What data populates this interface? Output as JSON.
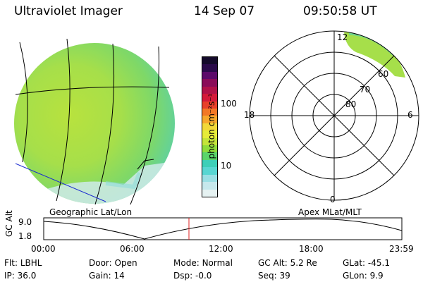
{
  "header": {
    "instrument": "Ultraviolet Imager",
    "date": "14 Sep 07",
    "time": "09:50:58 UT"
  },
  "colorbar": {
    "label": "photon cm⁻²s⁻¹",
    "ticks": [
      "100",
      "10"
    ],
    "colors": [
      "#e6f2f2",
      "#c6e8ec",
      "#9adfe4",
      "#58d6d2",
      "#3dcfb8",
      "#5ad46a",
      "#8fdc3c",
      "#c4e43a",
      "#e6ec3a",
      "#f2d838",
      "#f7a72c",
      "#f27826",
      "#e8402a",
      "#d41a3a",
      "#b01248",
      "#8a0c58",
      "#5c0a6a",
      "#2a0a4a",
      "#140a2a"
    ]
  },
  "left_panel": {
    "caption": "Geographic Lat/Lon"
  },
  "right_panel": {
    "caption": "Apex MLat/MLT",
    "mlt_labels": {
      "top": "12",
      "left": "18",
      "right": "6",
      "bottom": "0"
    },
    "mlat_labels": [
      "60",
      "70",
      "80"
    ]
  },
  "altitude_plot": {
    "ylabel": "GC Alt",
    "yticks": [
      "9.0",
      "1.8"
    ],
    "xticks": [
      "00:00",
      "06:00",
      "12:00",
      "18:00",
      "23:59"
    ]
  },
  "footer": {
    "row1": [
      {
        "key": "Flt:",
        "value": "LBHL"
      },
      {
        "key": "Door:",
        "value": "Open"
      },
      {
        "key": "Mode:",
        "value": "Normal"
      },
      {
        "key": "GC Alt:",
        "value": "5.2 Re"
      },
      {
        "key": "GLat:",
        "value": "-45.1"
      }
    ],
    "row2": [
      {
        "key": "IP:",
        "value": "36.0"
      },
      {
        "key": "Gain:",
        "value": "14"
      },
      {
        "key": "Dsp:",
        "value": "-0.0"
      },
      {
        "key": "Seq:",
        "value": "39"
      },
      {
        "key": "GLon:",
        "value": "9.9"
      }
    ]
  }
}
